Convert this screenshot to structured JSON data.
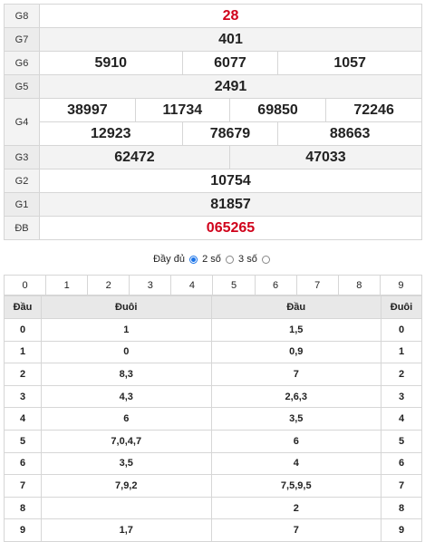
{
  "prizes": [
    {
      "label": "G8",
      "values": [
        "28"
      ]
    },
    {
      "label": "G7",
      "values": [
        "401"
      ]
    },
    {
      "label": "G6",
      "values": [
        "5910",
        "6077",
        "1057"
      ]
    },
    {
      "label": "G5",
      "values": [
        "2491"
      ]
    },
    {
      "label": "G4",
      "values": [
        "38997",
        "11734",
        "69850",
        "72246",
        "12923",
        "78679",
        "88663"
      ]
    },
    {
      "label": "G3",
      "values": [
        "62472",
        "47033"
      ]
    },
    {
      "label": "G2",
      "values": [
        "10754"
      ]
    },
    {
      "label": "G1",
      "values": [
        "81857"
      ]
    },
    {
      "label": "ĐB",
      "values": [
        "065265"
      ]
    }
  ],
  "options": {
    "full": "Đầy đủ",
    "two": "2 số",
    "three": "3 số",
    "selected": "full"
  },
  "digits": [
    "0",
    "1",
    "2",
    "3",
    "4",
    "5",
    "6",
    "7",
    "8",
    "9"
  ],
  "loto": {
    "headers": [
      "Đầu",
      "Đuôi",
      "Đầu",
      "Đuôi"
    ],
    "rows": [
      {
        "k": "0",
        "dau": "1",
        "duoi": "1,5",
        "k2": "0"
      },
      {
        "k": "1",
        "dau": "0",
        "duoi": "0,9",
        "k2": "1"
      },
      {
        "k": "2",
        "dau": "8,3",
        "duoi": "7",
        "k2": "2"
      },
      {
        "k": "3",
        "dau": "4,3",
        "duoi": "2,6,3",
        "k2": "3"
      },
      {
        "k": "4",
        "dau": "6",
        "duoi": "3,5",
        "k2": "4"
      },
      {
        "k": "5",
        "dau": "7,0,4,7",
        "duoi": "6",
        "k2": "5"
      },
      {
        "k": "6",
        "dau": "3,5",
        "duoi": "4",
        "k2": "6"
      },
      {
        "k": "7",
        "dau": "7,9,2",
        "duoi": "7,5,9,5",
        "k2": "7"
      },
      {
        "k": "8",
        "dau": "",
        "duoi": "2",
        "k2": "8"
      },
      {
        "k": "9",
        "dau": "1,7",
        "duoi": "7",
        "k2": "9"
      }
    ]
  },
  "colors": {
    "special": "#d0021b",
    "g8": "#d0021b"
  }
}
